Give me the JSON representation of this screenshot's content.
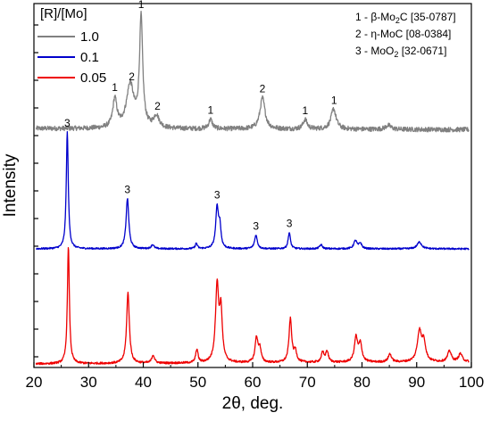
{
  "chart_data": {
    "type": "line",
    "xlabel": "2θ, deg.",
    "ylabel": "Intensity",
    "xlim": [
      20,
      100
    ],
    "x_ticks": [
      "20",
      "30",
      "40",
      "50",
      "60",
      "70",
      "80",
      "90",
      "100"
    ],
    "legend": {
      "title": "[R]/[Mo]",
      "placement": "top-left",
      "entries": [
        {
          "label": "1.0",
          "color": "#808080"
        },
        {
          "label": "0.1",
          "color": "#0000cc"
        },
        {
          "label": "0.05",
          "color": "#ee0000"
        }
      ]
    },
    "phase_notes": [
      {
        "index": "1 -",
        "name": "β-Mo",
        "sub": "2",
        "rest": "C [35-0787]"
      },
      {
        "index": "2 -",
        "name": "η-MoC [08-0384]",
        "sub": "",
        "rest": ""
      },
      {
        "index": "3 -",
        "name": "MoO",
        "sub": "2",
        "rest": " [32-0671]"
      }
    ],
    "series": [
      {
        "name": "1.0",
        "color": "#808080",
        "baseline": 0.78,
        "baseline_end": 0.7,
        "noise": 0.35,
        "peaks": [
          {
            "x": 34.8,
            "h": 2.1,
            "w": 0.45
          },
          {
            "x": 37.6,
            "h": 3.2,
            "w": 0.8
          },
          {
            "x": 39.6,
            "h": 8.0,
            "w": 0.35
          },
          {
            "x": 42.4,
            "h": 0.9,
            "w": 0.6
          },
          {
            "x": 52.3,
            "h": 0.7,
            "w": 0.4
          },
          {
            "x": 61.8,
            "h": 2.3,
            "w": 0.55
          },
          {
            "x": 69.6,
            "h": 0.7,
            "w": 0.45
          },
          {
            "x": 74.8,
            "h": 1.5,
            "w": 0.55
          },
          {
            "x": 84.8,
            "h": 0.3,
            "w": 0.6
          }
        ]
      },
      {
        "name": "0.1",
        "color": "#0000cc",
        "baseline": 0.33,
        "baseline_end": 0.33,
        "noise": 0.12,
        "peaks": [
          {
            "x": 26.1,
            "h": 8.6,
            "w": 0.22
          },
          {
            "x": 37.1,
            "h": 3.7,
            "w": 0.3
          },
          {
            "x": 41.7,
            "h": 0.3,
            "w": 0.3
          },
          {
            "x": 49.7,
            "h": 0.4,
            "w": 0.22
          },
          {
            "x": 53.5,
            "h": 3.0,
            "w": 0.3
          },
          {
            "x": 54.0,
            "h": 1.5,
            "w": 0.25
          },
          {
            "x": 60.6,
            "h": 1.0,
            "w": 0.3
          },
          {
            "x": 66.7,
            "h": 1.2,
            "w": 0.25
          },
          {
            "x": 72.5,
            "h": 0.3,
            "w": 0.3
          },
          {
            "x": 78.8,
            "h": 0.6,
            "w": 0.35
          },
          {
            "x": 79.7,
            "h": 0.4,
            "w": 0.3
          },
          {
            "x": 90.5,
            "h": 0.5,
            "w": 0.5
          }
        ]
      },
      {
        "name": "0.05",
        "color": "#ee0000",
        "baseline": 0.0,
        "baseline_end": 0.15,
        "noise": 0.15,
        "peaks": [
          {
            "x": 26.3,
            "h": 8.6,
            "w": 0.22
          },
          {
            "x": 37.2,
            "h": 5.2,
            "w": 0.3
          },
          {
            "x": 41.8,
            "h": 0.6,
            "w": 0.3
          },
          {
            "x": 49.8,
            "h": 1.0,
            "w": 0.25
          },
          {
            "x": 53.5,
            "h": 5.6,
            "w": 0.35
          },
          {
            "x": 54.2,
            "h": 3.6,
            "w": 0.3
          },
          {
            "x": 60.7,
            "h": 1.8,
            "w": 0.3
          },
          {
            "x": 61.3,
            "h": 1.0,
            "w": 0.3
          },
          {
            "x": 66.9,
            "h": 3.2,
            "w": 0.3
          },
          {
            "x": 67.8,
            "h": 0.8,
            "w": 0.3
          },
          {
            "x": 72.8,
            "h": 0.7,
            "w": 0.3
          },
          {
            "x": 73.6,
            "h": 0.8,
            "w": 0.3
          },
          {
            "x": 78.9,
            "h": 1.8,
            "w": 0.35
          },
          {
            "x": 79.7,
            "h": 1.3,
            "w": 0.35
          },
          {
            "x": 85.1,
            "h": 0.6,
            "w": 0.35
          },
          {
            "x": 90.5,
            "h": 2.2,
            "w": 0.45
          },
          {
            "x": 91.3,
            "h": 1.4,
            "w": 0.4
          },
          {
            "x": 96.0,
            "h": 0.8,
            "w": 0.4
          },
          {
            "x": 98.0,
            "h": 0.6,
            "w": 0.4
          }
        ]
      }
    ],
    "peak_labels": [
      {
        "text": "1",
        "x": 34.8,
        "series": "1.0"
      },
      {
        "text": "2",
        "x": 37.9,
        "series": "1.0"
      },
      {
        "text": "1",
        "x": 39.6,
        "series": "1.0"
      },
      {
        "text": "2",
        "x": 42.6,
        "series": "1.0"
      },
      {
        "text": "1",
        "x": 52.3,
        "series": "1.0"
      },
      {
        "text": "2",
        "x": 61.8,
        "series": "1.0"
      },
      {
        "text": "1",
        "x": 69.6,
        "series": "1.0"
      },
      {
        "text": "1",
        "x": 74.9,
        "series": "1.0"
      },
      {
        "text": "3",
        "x": 26.1,
        "series": "0.1"
      },
      {
        "text": "3",
        "x": 37.1,
        "series": "0.1"
      },
      {
        "text": "3",
        "x": 53.5,
        "series": "0.1"
      },
      {
        "text": "3",
        "x": 60.6,
        "series": "0.1"
      },
      {
        "text": "3",
        "x": 66.7,
        "series": "0.1"
      }
    ]
  }
}
